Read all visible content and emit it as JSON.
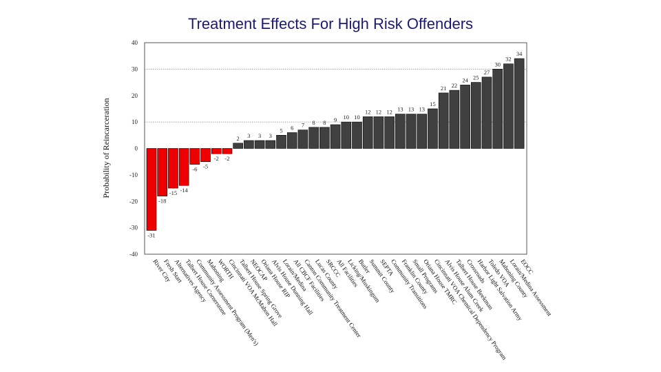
{
  "title": "Treatment Effects For High Risk Offenders",
  "chart_data": {
    "type": "bar",
    "title": "Treatment Effects For High Risk Offenders",
    "xlabel": "",
    "ylabel": "Probability of Reincarceration",
    "ylim": [
      -40,
      40
    ],
    "yticks": [
      40,
      30,
      20,
      10,
      0,
      -10,
      -20,
      -30,
      -40
    ],
    "reference_lines": [
      30,
      10
    ],
    "grid": false,
    "colors": {
      "negative": "#ee0000",
      "positive": "#404040"
    },
    "categories": [
      "River City",
      "Fresh Start",
      "Alternatives Agency",
      "Talbert House Cornerstone",
      "Community Assessment Program (Men's)",
      "Mahoning",
      "WORTH",
      "Cincinnati VOA McMahon Hall",
      "Talbert House Spring Grove",
      "NEOCAP",
      "Oriana House RIP",
      "Alvis House Dunning Hall",
      "Lorain/Medina",
      "All CBCF Facilities",
      "Canton Community Treatment Center",
      "Lucas County",
      "SRCCC",
      "All Facilities",
      "Licking/Muskingum",
      "Butler",
      "Summit County",
      "SEPTA",
      "Community Transitions",
      "Franklin County",
      "Small Programs",
      "Oriana House TMRC",
      "Cincinnati VOA Chemical Dependency Program",
      "Alvis House Alum Creek",
      "Talbert House Beekman",
      "Crossroads",
      "Harbor Light Salvation Army",
      "Toledo VOA",
      "Mahoning County",
      "Lorain/Medina Assessment",
      "EOCC"
    ],
    "values": [
      -31,
      -18,
      -15,
      -14,
      -6,
      -5,
      -2,
      -2,
      2,
      3,
      3,
      3,
      5,
      6,
      7,
      8,
      8,
      9,
      10,
      10,
      12,
      12,
      12,
      13,
      13,
      13,
      15,
      21,
      22,
      24,
      25,
      27,
      30,
      32,
      34
    ]
  }
}
